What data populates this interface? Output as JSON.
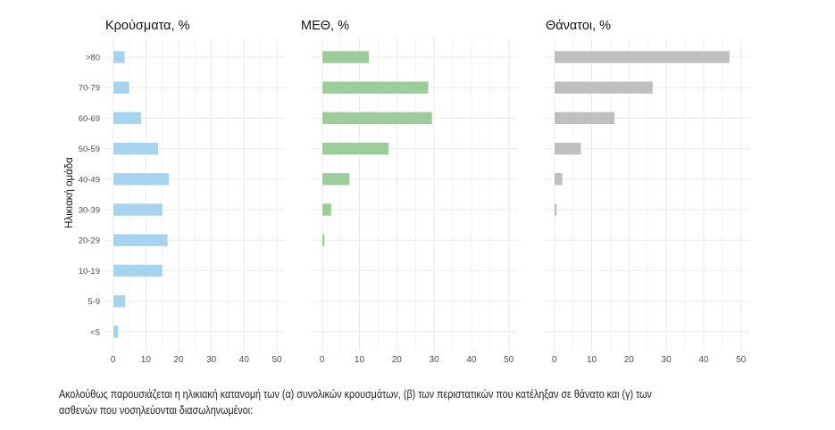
{
  "chart_data": {
    "type": "bar",
    "orientation": "horizontal",
    "ylabel": "Ηλικιακή ομάδα",
    "categories": [
      ">80",
      "70-79",
      "60-69",
      "50-59",
      "40-49",
      "30-39",
      "20-29",
      "10-19",
      "5-9",
      "<5"
    ],
    "xlim": [
      0,
      52
    ],
    "xticks": [
      0,
      10,
      20,
      30,
      40,
      50
    ],
    "grid": true,
    "panels": [
      {
        "title": "Κρούσματα, %",
        "color": "#a6d3ee",
        "values": [
          3.6,
          5.0,
          8.6,
          13.8,
          17.1,
          15.1,
          16.7,
          15.1,
          3.8,
          1.6
        ]
      },
      {
        "title": "ΜΕΘ, %",
        "color": "#9ccd99",
        "values": [
          12.6,
          28.5,
          29.5,
          17.9,
          7.4,
          2.5,
          0.7,
          0.2,
          0.0,
          0.2
        ]
      },
      {
        "title": "Θάνατοι, %",
        "color": "#bfbfbf",
        "values": [
          47.0,
          26.4,
          16.2,
          7.2,
          2.2,
          0.7,
          0.2,
          0.0,
          0.0,
          0.0
        ]
      }
    ]
  },
  "caption": "Ακολούθως παρουσιάζεται η ηλικιακή κατανομή των (α) συνολικών κρουσμάτων, (β) των περιστατικών που κατέληξαν σε θάνατο και (γ) των ασθενών που νοσηλεύονται διασωληνωμένοι:"
}
